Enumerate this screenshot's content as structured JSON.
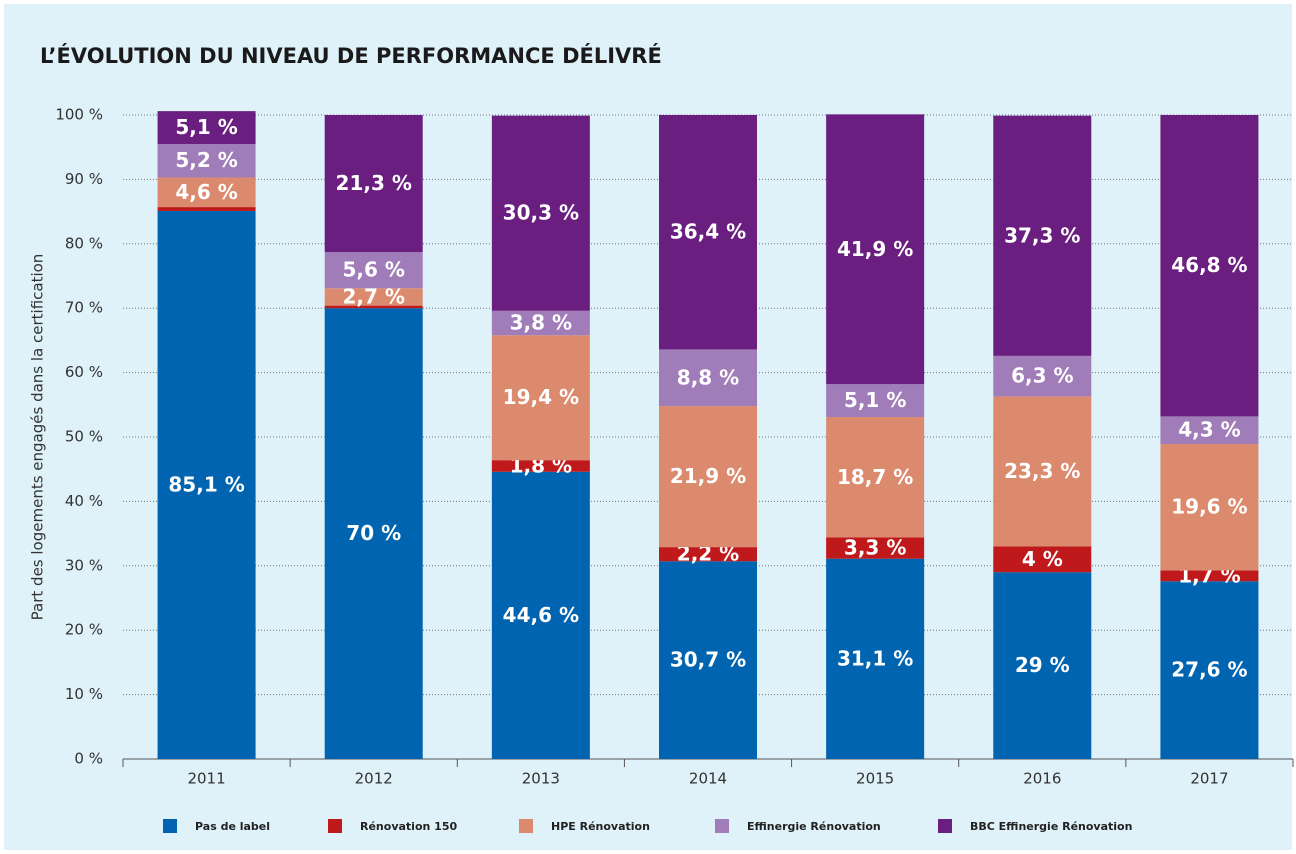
{
  "chart_data": {
    "type": "stacked-bar",
    "title": "L’ÉVOLUTION DU NIVEAU DE PERFORMANCE DÉLIVRÉ",
    "y_label": "Part des logements engagés dans la certification",
    "categories": [
      "2011",
      "2012",
      "2013",
      "2014",
      "2015",
      "2016",
      "2017"
    ],
    "series": [
      {
        "name": "Pas de label",
        "color": "#0064b0",
        "values": [
          85.1,
          70,
          44.6,
          30.7,
          31.1,
          29,
          27.6
        ],
        "value_labels": [
          "85,1 %",
          "70 %",
          "44,6 %",
          "30,7 %",
          "31,1 %",
          "29 %",
          "27,6 %"
        ]
      },
      {
        "name": "Rénovation 150",
        "color": "#c0191c",
        "values": [
          0.6,
          0.4,
          1.8,
          2.2,
          3.3,
          4,
          1.7
        ],
        "value_labels": [
          null,
          null,
          "1,8 %",
          "2,2 %",
          "3,3 %",
          "4 %",
          "1,7 %"
        ]
      },
      {
        "name": "HPE Rénovation",
        "color": "#dc8a6e",
        "values": [
          4.6,
          2.7,
          19.4,
          21.9,
          18.7,
          23.3,
          19.6
        ],
        "value_labels": [
          "4,6 %",
          "2,7 %",
          "19,4 %",
          "21,9 %",
          "18,7 %",
          "23,3 %",
          "19,6 %"
        ]
      },
      {
        "name": "Effinergie Rénovation",
        "color": "#a07cb8",
        "values": [
          5.2,
          5.6,
          3.8,
          8.8,
          5.1,
          6.3,
          4.3
        ],
        "value_labels": [
          "5,2 %",
          "5,6 %",
          "3,8 %",
          "8,8 %",
          "5,1 %",
          "6,3 %",
          "4,3 %"
        ]
      },
      {
        "name": "BBC Effinergie Rénovation",
        "color": "#6a1e7f",
        "values": [
          5.1,
          21.3,
          30.3,
          36.4,
          41.9,
          37.3,
          46.8
        ],
        "value_labels": [
          "5,1 %",
          "21,3 %",
          "30,3 %",
          "36,4 %",
          "41,9 %",
          "37,3 %",
          "46,8 %"
        ]
      }
    ],
    "ylim": [
      0,
      100
    ],
    "yticks": [
      {
        "value": 0,
        "label": "0 %"
      },
      {
        "value": 10,
        "label": "10 %"
      },
      {
        "value": 20,
        "label": "20 %"
      },
      {
        "value": 30,
        "label": "30 %"
      },
      {
        "value": 40,
        "label": "40 %"
      },
      {
        "value": 50,
        "label": "50 %"
      },
      {
        "value": 60,
        "label": "60 %"
      },
      {
        "value": 70,
        "label": "70 %"
      },
      {
        "value": 80,
        "label": "80 %"
      },
      {
        "value": 90,
        "label": "90 %"
      },
      {
        "value": 100,
        "label": "100 %"
      }
    ],
    "grid": true,
    "legend": "bottom"
  }
}
